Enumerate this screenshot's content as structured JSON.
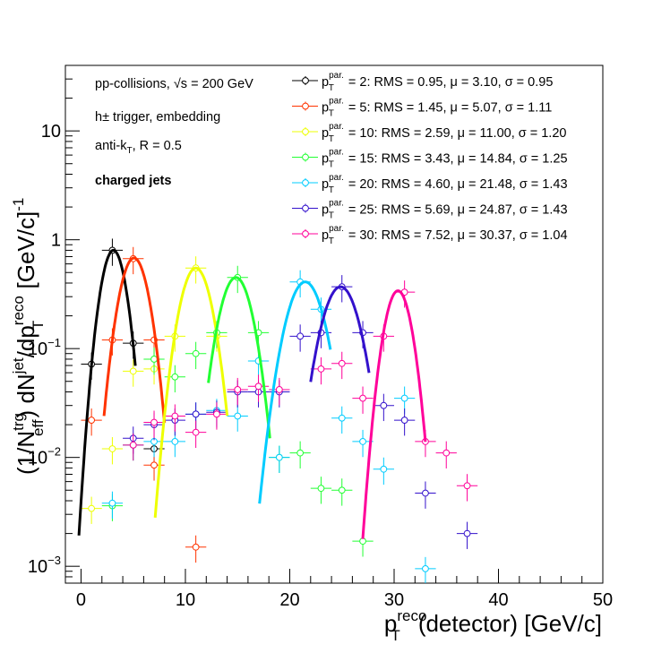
{
  "chart_data": {
    "type": "scatter",
    "xlabel": {
      "main": "p",
      "sub": "T",
      "sup": "reco",
      "rest": "(detector) [GeV/c]"
    },
    "ylabel": {
      "t1": "(1/N",
      "t1_sub": "eff",
      "t1_sup": "trg",
      "t2": ") dN",
      "t2_sup": "jet",
      "t3": "/dp",
      "t3_sub": "T",
      "t3_sup": "reco",
      "t4": " [GeV/c]",
      "t4_sup": "-1"
    },
    "xlim": [
      -1.5,
      50
    ],
    "ylim": [
      0.0007,
      40
    ],
    "y_log": true,
    "grid": false,
    "legend_position": "top-right",
    "x_ticks": [
      {
        "value": 0,
        "label": "0"
      },
      {
        "value": 10,
        "label": "10"
      },
      {
        "value": 20,
        "label": "20"
      },
      {
        "value": 30,
        "label": "30"
      },
      {
        "value": 40,
        "label": "40"
      },
      {
        "value": 50,
        "label": "50"
      }
    ],
    "y_ticks": [
      {
        "value": 0.001,
        "label": "10",
        "sup": "−3"
      },
      {
        "value": 0.01,
        "label": "10",
        "sup": "−2"
      },
      {
        "value": 0.1,
        "label": "10",
        "sup": "−1"
      },
      {
        "value": 1,
        "label": "1",
        "sup": ""
      },
      {
        "value": 10,
        "label": "10",
        "sup": ""
      }
    ],
    "annotations": [
      {
        "text": "pp-collisions, √s = 200 GeV",
        "bold": false
      },
      {
        "text": "h± trigger, embedding",
        "bold": false
      },
      {
        "text": "anti-k_T, R = 0.5",
        "bold": false
      },
      {
        "text": "charged jets",
        "bold": true
      }
    ],
    "series": [
      {
        "name": "p_T^par. = 2: RMS = 0.95, μ = 3.10, σ = 0.95",
        "legend_num": "2",
        "legend_tail": "RMS = 0.95, μ = 3.10, σ = 0.95",
        "color": "#000000",
        "mu": 3.1,
        "sigma": 0.95,
        "amp": 0.8,
        "fit_range": [
          -0.2,
          5.2
        ],
        "points": [
          {
            "x": 1,
            "y": 0.072
          },
          {
            "x": 3,
            "y": 0.8
          },
          {
            "x": 5,
            "y": 0.112
          },
          {
            "x": 7,
            "y": 0.012
          }
        ]
      },
      {
        "name": "p_T^par. = 5: RMS = 1.45, μ = 5.07, σ = 1.11",
        "legend_num": "5",
        "legend_tail": "RMS = 1.45, μ = 5.07, σ = 1.11",
        "color": "#ff3300",
        "mu": 5.07,
        "sigma": 1.11,
        "amp": 0.68,
        "fit_range": [
          2.2,
          8.0
        ],
        "points": [
          {
            "x": 1,
            "y": 0.022
          },
          {
            "x": 3,
            "y": 0.12
          },
          {
            "x": 5,
            "y": 0.67
          },
          {
            "x": 7,
            "y": 0.12
          },
          {
            "x": 7,
            "y": 0.0085
          }
        ]
      },
      {
        "name": "p_T^par. = 10: RMS = 2.59, μ = 11.00, σ = 1.20",
        "legend_num": "10",
        "legend_tail": "RMS = 2.59, μ = 11.00, σ = 1.20",
        "color": "#eeff00",
        "mu": 11.0,
        "sigma": 1.2,
        "amp": 0.55,
        "fit_range": [
          7.1,
          14.0
        ],
        "points": [
          {
            "x": 1,
            "y": 0.0034
          },
          {
            "x": 3,
            "y": 0.012
          },
          {
            "x": 5,
            "y": 0.062
          },
          {
            "x": 7,
            "y": 0.065
          },
          {
            "x": 9,
            "y": 0.13
          },
          {
            "x": 11,
            "y": 0.55
          },
          {
            "x": 13,
            "y": 0.13
          }
        ]
      },
      {
        "name": "p_T^par. = 15: RMS = 3.43, μ = 14.84, σ = 1.25",
        "legend_num": "15",
        "legend_tail": "RMS = 3.43, μ = 14.84, σ = 1.25",
        "color": "#22ff33",
        "mu": 14.84,
        "sigma": 1.25,
        "amp": 0.45,
        "fit_range": [
          12.2,
          18.1
        ],
        "points": [
          {
            "x": 3,
            "y": 0.0036
          },
          {
            "x": 5,
            "y": 0.013
          },
          {
            "x": 7,
            "y": 0.08
          },
          {
            "x": 9,
            "y": 0.055
          },
          {
            "x": 11,
            "y": 0.09
          },
          {
            "x": 13,
            "y": 0.14
          },
          {
            "x": 15,
            "y": 0.45
          },
          {
            "x": 17,
            "y": 0.14
          },
          {
            "x": 19,
            "y": 0.01
          },
          {
            "x": 21,
            "y": 0.011
          },
          {
            "x": 23,
            "y": 0.0052
          },
          {
            "x": 25,
            "y": 0.005
          },
          {
            "x": 27,
            "y": 0.0017
          }
        ]
      },
      {
        "name": "p_T^par. = 20: RMS = 4.60, μ = 21.48, σ = 1.43",
        "legend_num": "20",
        "legend_tail": "RMS = 4.60, μ = 21.48, σ = 1.43",
        "color": "#00ccff",
        "mu": 21.48,
        "sigma": 1.43,
        "amp": 0.41,
        "fit_range": [
          17.1,
          23.9
        ],
        "points": [
          {
            "x": 3,
            "y": 0.0038
          },
          {
            "x": 5,
            "y": 0.013
          },
          {
            "x": 7,
            "y": 0.014
          },
          {
            "x": 9,
            "y": 0.014
          },
          {
            "x": 11,
            "y": 0.025
          },
          {
            "x": 13,
            "y": 0.027
          },
          {
            "x": 15,
            "y": 0.024
          },
          {
            "x": 17,
            "y": 0.077
          },
          {
            "x": 19,
            "y": 0.01
          },
          {
            "x": 21,
            "y": 0.41
          },
          {
            "x": 23,
            "y": 0.23
          },
          {
            "x": 25,
            "y": 0.023
          },
          {
            "x": 27,
            "y": 0.014
          },
          {
            "x": 29,
            "y": 0.0078
          },
          {
            "x": 31,
            "y": 0.035
          },
          {
            "x": 33,
            "y": 0.00095
          }
        ]
      },
      {
        "name": "p_T^par. = 25: RMS = 5.69, μ = 24.87, σ = 1.43",
        "legend_num": "25",
        "legend_tail": "RMS = 5.69, μ = 24.87, σ = 1.43",
        "color": "#3311cc",
        "mu": 24.87,
        "sigma": 1.43,
        "amp": 0.37,
        "fit_range": [
          22.0,
          27.6
        ],
        "points": [
          {
            "x": 5,
            "y": 0.015
          },
          {
            "x": 7,
            "y": 0.02
          },
          {
            "x": 9,
            "y": 0.022
          },
          {
            "x": 11,
            "y": 0.025
          },
          {
            "x": 13,
            "y": 0.026
          },
          {
            "x": 15,
            "y": 0.04
          },
          {
            "x": 17,
            "y": 0.04
          },
          {
            "x": 19,
            "y": 0.04
          },
          {
            "x": 21,
            "y": 0.13
          },
          {
            "x": 23,
            "y": 0.14
          },
          {
            "x": 25,
            "y": 0.37
          },
          {
            "x": 27,
            "y": 0.14
          },
          {
            "x": 29,
            "y": 0.03
          },
          {
            "x": 31,
            "y": 0.022
          },
          {
            "x": 33,
            "y": 0.0047
          },
          {
            "x": 37,
            "y": 0.002
          }
        ]
      },
      {
        "name": "p_T^par. = 30: RMS = 7.52, μ = 30.37, σ = 1.04",
        "legend_num": "30",
        "legend_tail": "RMS = 7.52, μ = 30.37, σ = 1.04",
        "color": "#ff0099",
        "mu": 30.37,
        "sigma": 1.04,
        "amp": 0.34,
        "fit_range": [
          27.0,
          33.0
        ],
        "points": [
          {
            "x": 5,
            "y": 0.013
          },
          {
            "x": 7,
            "y": 0.021
          },
          {
            "x": 9,
            "y": 0.024
          },
          {
            "x": 11,
            "y": 0.017
          },
          {
            "x": 13,
            "y": 0.025
          },
          {
            "x": 15,
            "y": 0.042
          },
          {
            "x": 17,
            "y": 0.045
          },
          {
            "x": 19,
            "y": 0.042
          },
          {
            "x": 23,
            "y": 0.065
          },
          {
            "x": 25,
            "y": 0.073
          },
          {
            "x": 27,
            "y": 0.035
          },
          {
            "x": 29,
            "y": 0.13
          },
          {
            "x": 31,
            "y": 0.33
          },
          {
            "x": 33,
            "y": 0.014
          },
          {
            "x": 35,
            "y": 0.011
          },
          {
            "x": 37,
            "y": 0.0055
          }
        ]
      }
    ],
    "extra_points": [
      {
        "x": 11,
        "y": 0.0015,
        "color": "#ff3300"
      }
    ]
  }
}
